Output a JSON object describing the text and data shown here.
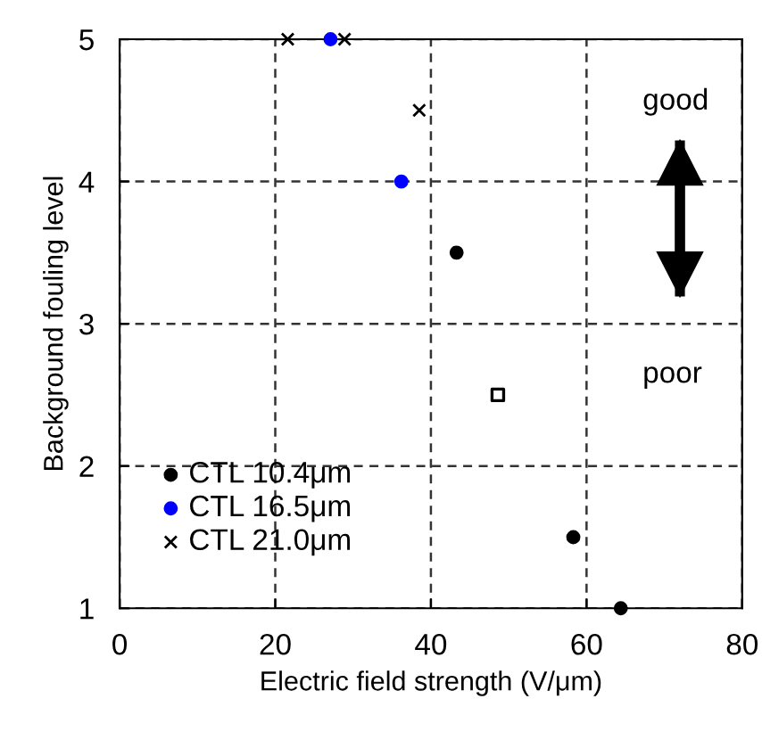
{
  "chart_data": {
    "type": "scatter",
    "xlabel": "Electric field strength (V/μm)",
    "ylabel": "Background fouling level",
    "xlim": [
      0,
      80
    ],
    "xticks": [
      0,
      20,
      40,
      60,
      80
    ],
    "ylim": [
      1,
      5
    ],
    "yticks": [
      1,
      2,
      3,
      4,
      5
    ],
    "grid": true,
    "legend": "bottom left",
    "annotations": [
      "good",
      "poor"
    ],
    "series": [
      {
        "name": "CTL 10.4μm",
        "color": "#000000",
        "marker": "circle",
        "x": [
          43.3,
          58.3,
          64.4
        ],
        "values": [
          3.5,
          1.5,
          1.0
        ]
      },
      {
        "name": "CTL 16.5μm",
        "color": "#0000ff",
        "marker": "circle",
        "x": [
          27.1,
          36.2
        ],
        "values": [
          5.0,
          4.0
        ]
      },
      {
        "name": "CTL 21.0μm",
        "color": "#000000",
        "marker": "cross",
        "x": [
          21.6,
          28.9,
          38.5
        ],
        "values": [
          5.0,
          5.0,
          4.5
        ]
      },
      {
        "color": "#000000",
        "marker": "square",
        "x": [
          48.6
        ],
        "values": [
          2.5
        ]
      }
    ]
  }
}
